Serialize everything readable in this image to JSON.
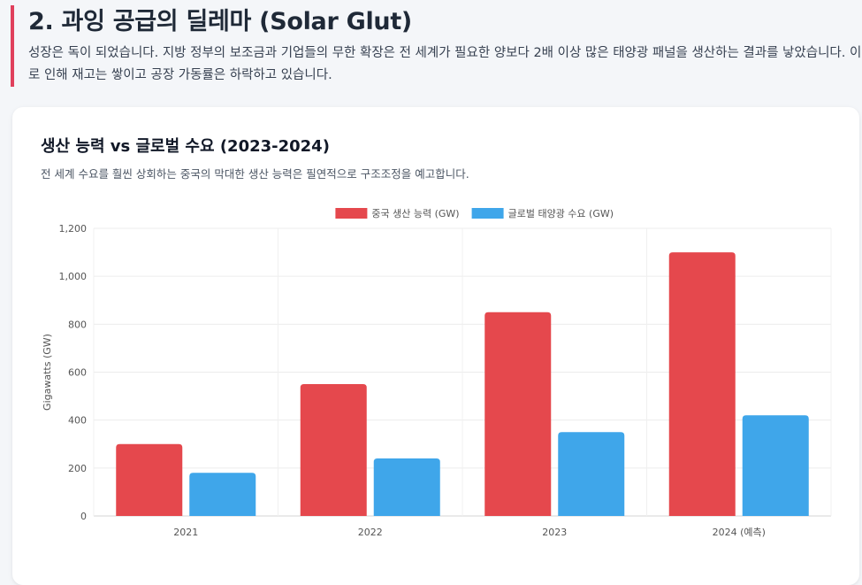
{
  "section": {
    "title": "2. 과잉 공급의 딜레마 (Solar Glut)",
    "description": "성장은 독이 되었습니다. 지방 정부의 보조금과 기업들의 무한 확장은 전 세계가 필요한 양보다 2배 이상 많은 태양광 패널을 생산하는 결과를 낳았습니다. 이로 인해 재고는 쌓이고 공장 가동률은 하락하고 있습니다."
  },
  "card": {
    "title": "생산 능력 vs 글로벌 수요 (2023-2024)",
    "subtitle": "전 세계 수요를 훨씬 상회하는 중국의 막대한 생산 능력은 필연적으로 구조조정을 예고합니다."
  },
  "chart_data": {
    "type": "bar",
    "categories": [
      "2021",
      "2022",
      "2023",
      "2024 (예측)"
    ],
    "series": [
      {
        "name": "중국 생산 능력 (GW)",
        "color": "#e5484d",
        "values": [
          300,
          550,
          850,
          1100
        ]
      },
      {
        "name": "글로벌 태양광 수요 (GW)",
        "color": "#3fa6ea",
        "values": [
          180,
          240,
          350,
          420
        ]
      }
    ],
    "ylabel": "Gigawatts (GW)",
    "ylim": [
      0,
      1200
    ],
    "yticks": [
      0,
      200,
      400,
      600,
      800,
      1000,
      1200
    ],
    "ytick_labels": [
      "0",
      "200",
      "400",
      "600",
      "800",
      "1,000",
      "1,200"
    ],
    "grid": true,
    "legend": "top-center"
  }
}
